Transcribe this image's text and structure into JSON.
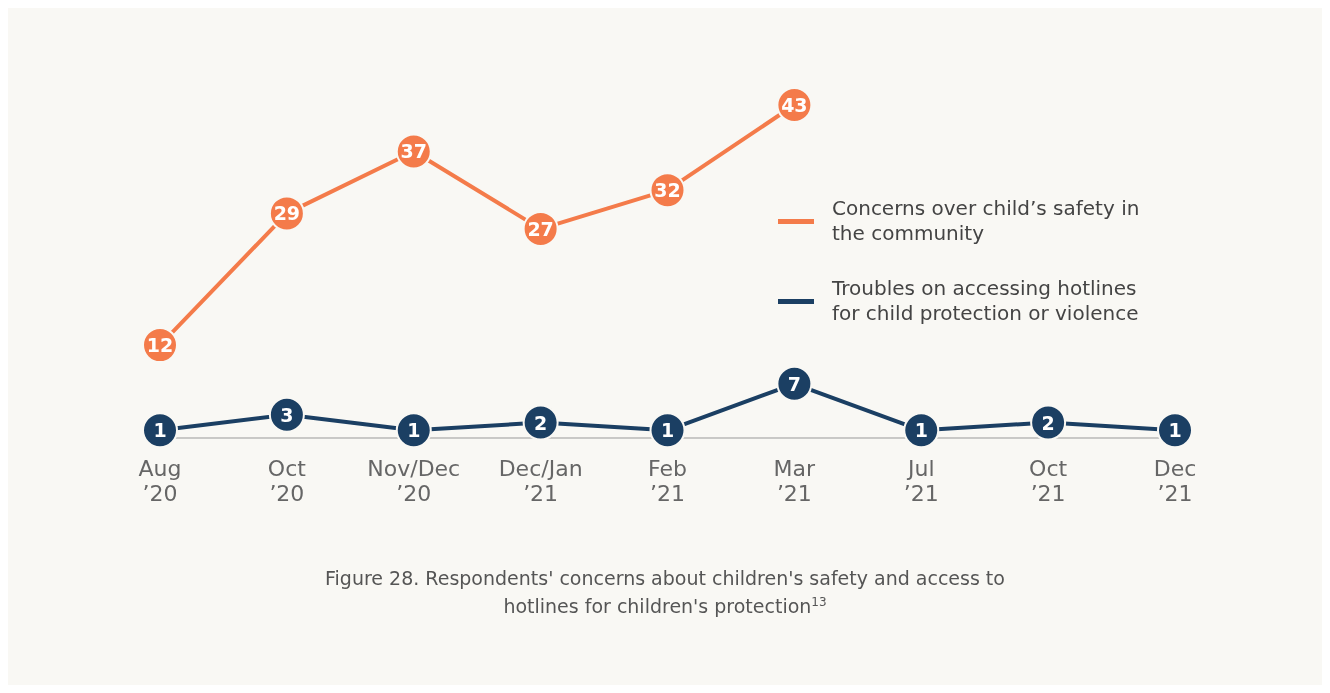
{
  "chart_data": {
    "type": "line",
    "categories": [
      "Aug\n’20",
      "Oct\n’20",
      "Nov/Dec\n’20",
      "Dec/Jan\n’21",
      "Feb\n’21",
      "Mar\n’21",
      "Jul\n’21",
      "Oct\n’21",
      "Dec\n’21"
    ],
    "series": [
      {
        "name": "Concerns over child’s safety in the community",
        "color": "#f47b4a",
        "values": [
          12,
          29,
          37,
          27,
          32,
          43,
          null,
          null,
          null
        ]
      },
      {
        "name": "Troubles on accessing hotlines for child protection or violence",
        "color": "#1b3f63",
        "values": [
          1,
          3,
          1,
          2,
          1,
          7,
          1,
          2,
          1
        ]
      }
    ],
    "data_labels": true,
    "marker": "circle",
    "line_style": "solid",
    "legend": "right",
    "annotations": [
      "Figure 28. Respondents' concerns about children's safety and access to hotlines for children's protection$^{13}$"
    ]
  }
}
